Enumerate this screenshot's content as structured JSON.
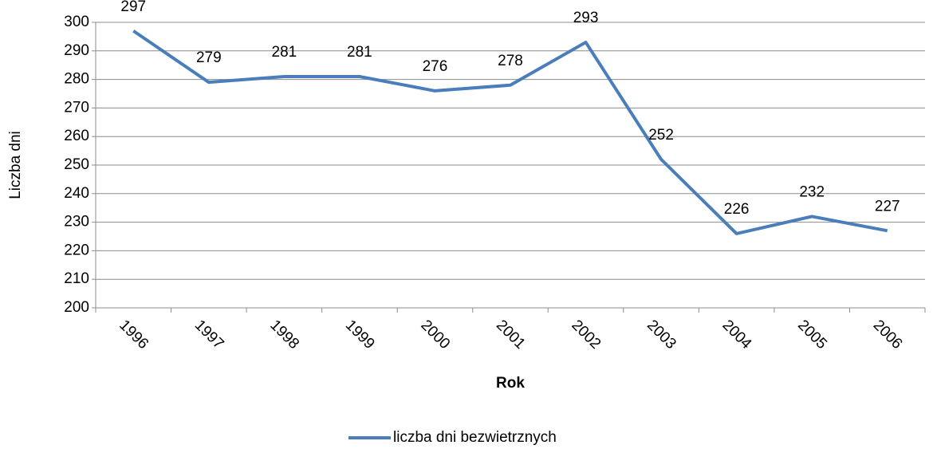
{
  "chart_data": {
    "type": "line",
    "x_label": "Rok",
    "y_label": "Liczba dni",
    "categories": [
      "1996",
      "1997",
      "1998",
      "1999",
      "2000",
      "2001",
      "2002",
      "2003",
      "2004",
      "2005",
      "2006"
    ],
    "series": [
      {
        "name": "liczba dni bezwietrznych",
        "color": "#4a7ebb",
        "values": [
          297,
          279,
          281,
          281,
          276,
          278,
          293,
          252,
          226,
          232,
          227
        ]
      }
    ],
    "ylim": [
      200,
      300
    ],
    "yticks": [
      200,
      210,
      220,
      230,
      240,
      250,
      260,
      270,
      280,
      290,
      300
    ],
    "grid": true,
    "legend": "bottom"
  }
}
